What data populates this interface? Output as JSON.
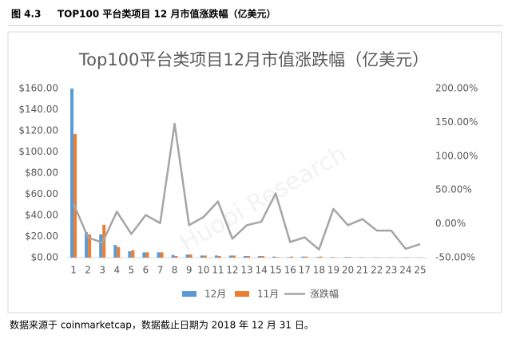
{
  "header": {
    "figure": "图 4.3",
    "title": "TOP100 平台类项目 12 月市值涨跌幅（亿美元）"
  },
  "chart_data": {
    "type": "bar-line",
    "title": "Top100平台类项目12月市值涨跌幅（亿美元）",
    "categories": [
      "1",
      "2",
      "3",
      "4",
      "5",
      "6",
      "7",
      "8",
      "9",
      "10",
      "11",
      "12",
      "13",
      "14",
      "15",
      "16",
      "17",
      "18",
      "19",
      "20",
      "21",
      "22",
      "23",
      "24",
      "25"
    ],
    "series": [
      {
        "name": "12月",
        "type": "bar",
        "color": "#5b9bd5",
        "values": [
          160,
          24,
          22,
          12,
          6,
          5,
          5,
          2.5,
          3,
          2,
          2,
          2,
          1.5,
          1.5,
          1,
          0.5,
          1,
          0.5,
          0.5,
          0.5,
          0.3,
          0.3,
          0.3,
          0.2,
          0.2
        ]
      },
      {
        "name": "11月",
        "type": "bar",
        "color": "#ed7d31",
        "values": [
          117,
          22,
          31,
          10,
          7,
          5,
          5,
          1.5,
          3,
          2,
          1.5,
          2,
          1.5,
          1.5,
          0.5,
          1,
          1,
          1,
          0.3,
          0.5,
          0.3,
          0.3,
          0.2,
          0.3,
          0.2
        ]
      },
      {
        "name": "涨跌幅",
        "type": "line",
        "axis": "y2",
        "color": "#a5a5a5",
        "values": [
          30,
          -20,
          -28,
          18,
          -15,
          13,
          1,
          148,
          -2,
          10,
          33,
          -22,
          -2,
          3,
          45,
          -27,
          -20,
          -38,
          22,
          -2,
          7,
          -10,
          -10,
          -37,
          -30
        ]
      }
    ],
    "ylim": [
      0,
      160
    ],
    "yticks": [
      {
        "value": 0,
        "label": "$0.00"
      },
      {
        "value": 20,
        "label": "$20.00"
      },
      {
        "value": 40,
        "label": "$40.00"
      },
      {
        "value": 60,
        "label": "$60.00"
      },
      {
        "value": 80,
        "label": "$80.00"
      },
      {
        "value": 100,
        "label": "$100.00"
      },
      {
        "value": 120,
        "label": "$120.00"
      },
      {
        "value": 140,
        "label": "$140.00"
      },
      {
        "value": 160,
        "label": "$160.00"
      }
    ],
    "y2lim": [
      -50,
      200
    ],
    "y2ticks": [
      {
        "value": -50,
        "label": "-50.00%"
      },
      {
        "value": 0,
        "label": "0.00%"
      },
      {
        "value": 50,
        "label": "50.00%"
      },
      {
        "value": 100,
        "label": "100.00%"
      },
      {
        "value": 150,
        "label": "150.00%"
      },
      {
        "value": 200,
        "label": "200.00%"
      }
    ],
    "grid": false,
    "legend": "bottom"
  },
  "watermark": "Huobi Research",
  "footer": "数据来源于 coinmarketcap，数据截止日期为 2018 年 12 月 31 日。"
}
